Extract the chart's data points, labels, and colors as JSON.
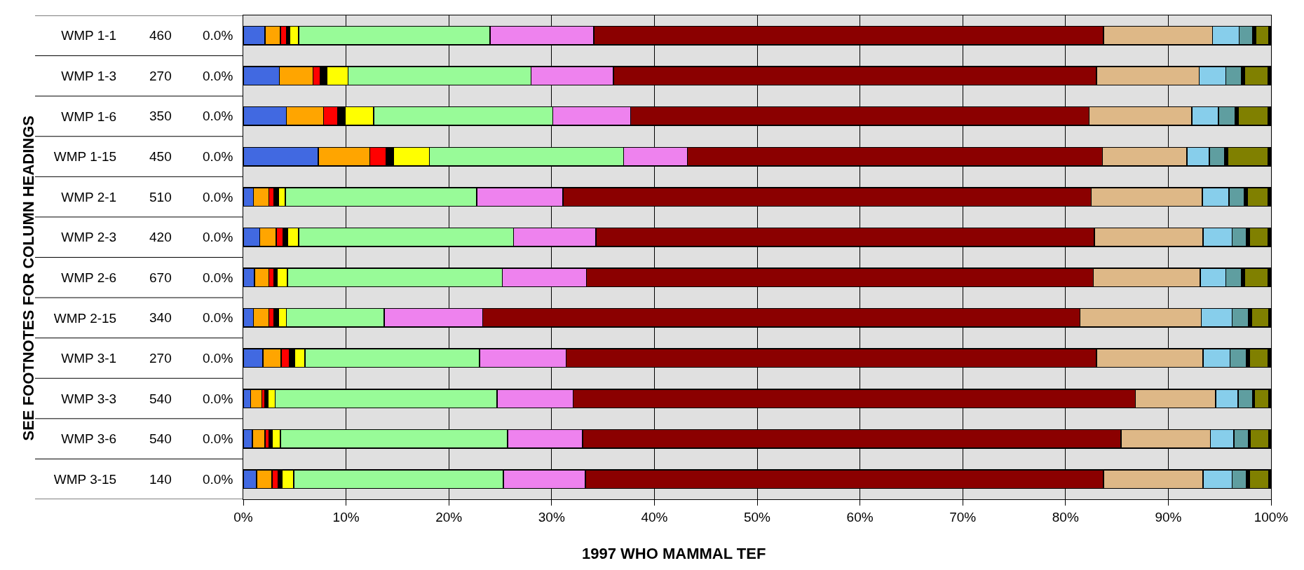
{
  "chart_data": {
    "type": "bar",
    "orientation": "horizontal",
    "stacked": true,
    "xlabel": "1997 WHO MAMMAL TEF",
    "ylabel": "SEE FOOTNOTES FOR COLUMN HEADINGS",
    "categories": [
      "WMP 1-1",
      "WMP 1-3",
      "WMP 1-6",
      "WMP 1-15",
      "WMP 2-1",
      "WMP 2-3",
      "WMP 2-6",
      "WMP 2-15",
      "WMP 3-1",
      "WMP 3-3",
      "WMP 3-6",
      "WMP 3-15"
    ],
    "xlim": [
      0,
      100
    ],
    "xticks": [
      {
        "value": 0,
        "label": "0%"
      },
      {
        "value": 10,
        "label": "10%"
      },
      {
        "value": 20,
        "label": "20%"
      },
      {
        "value": 30,
        "label": "30%"
      },
      {
        "value": 40,
        "label": "40%"
      },
      {
        "value": 50,
        "label": "50%"
      },
      {
        "value": 60,
        "label": "60%"
      },
      {
        "value": 70,
        "label": "70%"
      },
      {
        "value": 80,
        "label": "80%"
      },
      {
        "value": 90,
        "label": "90%"
      },
      {
        "value": 100,
        "label": "100%"
      }
    ],
    "grid": "x",
    "series": [
      {
        "color": "#4169e1",
        "values": [
          2.1,
          3.5,
          4.2,
          7.3,
          1.0,
          1.6,
          1.1,
          1.0,
          1.9,
          0.7,
          0.9,
          1.3
        ]
      },
      {
        "color": "#ffa500",
        "values": [
          1.5,
          3.3,
          3.6,
          5.0,
          1.5,
          1.6,
          1.4,
          1.5,
          1.8,
          1.1,
          1.2,
          1.5
        ]
      },
      {
        "color": "#ff0000",
        "values": [
          0.6,
          0.7,
          1.4,
          1.6,
          0.5,
          0.7,
          0.5,
          0.5,
          0.8,
          0.3,
          0.4,
          0.6
        ]
      },
      {
        "color": "#000000",
        "values": [
          0.3,
          0.6,
          0.7,
          0.7,
          0.4,
          0.4,
          0.3,
          0.4,
          0.5,
          0.3,
          0.3,
          0.4
        ]
      },
      {
        "color": "#ffff00",
        "values": [
          0.9,
          2.1,
          2.8,
          3.5,
          0.7,
          1.1,
          1.0,
          0.8,
          1.0,
          0.7,
          0.8,
          1.1
        ]
      },
      {
        "color": "#98fb98",
        "values": [
          18.6,
          17.8,
          17.4,
          18.9,
          18.6,
          20.9,
          20.9,
          9.5,
          17.0,
          21.6,
          22.1,
          20.4
        ]
      },
      {
        "color": "#ee82ee",
        "values": [
          10.1,
          8.0,
          7.6,
          6.2,
          8.4,
          8.0,
          8.2,
          9.6,
          8.4,
          7.4,
          7.3,
          8.0
        ]
      },
      {
        "color": "#8b0000",
        "values": [
          49.6,
          47.0,
          44.6,
          40.4,
          51.4,
          48.5,
          49.3,
          58.1,
          51.6,
          54.7,
          52.4,
          50.4
        ]
      },
      {
        "color": "#deb887",
        "values": [
          10.6,
          10.0,
          10.0,
          8.2,
          10.8,
          10.6,
          10.4,
          11.8,
          10.4,
          7.8,
          8.7,
          9.7
        ]
      },
      {
        "color": "#87ceeb",
        "values": [
          2.6,
          2.6,
          2.6,
          2.2,
          2.6,
          2.8,
          2.5,
          3.0,
          2.6,
          2.2,
          2.3,
          2.8
        ]
      },
      {
        "color": "#5f9ea0",
        "values": [
          1.3,
          1.5,
          1.6,
          1.5,
          1.5,
          1.4,
          1.5,
          1.6,
          1.6,
          1.4,
          1.4,
          1.4
        ]
      },
      {
        "color": "#000000",
        "values": [
          0.3,
          0.3,
          0.3,
          0.3,
          0.3,
          0.3,
          0.3,
          0.3,
          0.3,
          0.2,
          0.2,
          0.3
        ]
      },
      {
        "color": "#808000",
        "values": [
          1.3,
          2.3,
          2.9,
          3.9,
          2.0,
          1.8,
          2.3,
          1.7,
          1.8,
          1.4,
          1.8,
          1.9
        ]
      },
      {
        "color": "#000000",
        "values": [
          0.2,
          0.3,
          0.3,
          0.3,
          0.3,
          0.3,
          0.3,
          0.2,
          0.3,
          0.2,
          0.2,
          0.2
        ]
      }
    ],
    "annotations": [
      "460",
      "0.0%",
      "270",
      "0.0%",
      "350",
      "0.0%",
      "450",
      "0.0%",
      "510",
      "0.0%",
      "420",
      "0.0%",
      "670",
      "0.0%",
      "340",
      "0.0%",
      "270",
      "0.0%",
      "540",
      "0.0%",
      "540",
      "0.0%",
      "140",
      "0.0%"
    ]
  }
}
